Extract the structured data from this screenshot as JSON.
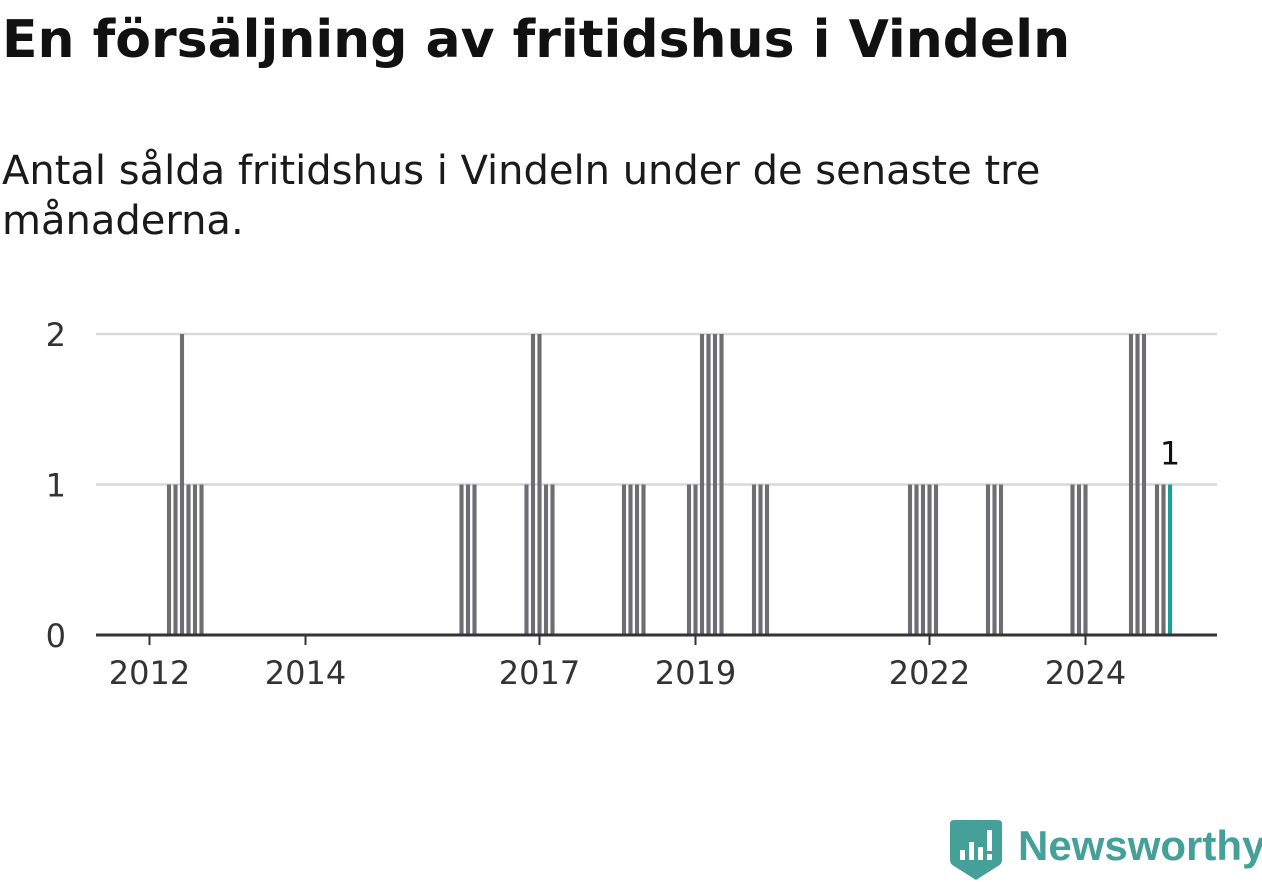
{
  "title": "En försäljning av fritidshus i Vindeln",
  "subtitle": "Antal sålda fritidshus i Vindeln under de senaste tre månaderna.",
  "brand": {
    "name": "Newsworthy",
    "color": "#46a09a"
  },
  "colors": {
    "bar": "#6d6d72",
    "highlight": "#16a397",
    "grid": "#d9d9d9",
    "axis": "#333333",
    "text": "#333333"
  },
  "chart_data": {
    "type": "bar",
    "title": "En försäljning av fritidshus i Vindeln",
    "subtitle": "Antal sålda fritidshus i Vindeln under de senaste tre månaderna.",
    "xlabel": "",
    "ylabel": "",
    "ylim": [
      0,
      2
    ],
    "yticks": [
      0,
      1,
      2
    ],
    "xticks": [
      "2012",
      "2014",
      "2017",
      "2019",
      "2022",
      "2024"
    ],
    "grid": true,
    "x_unit": "month",
    "x": [
      "2012-04",
      "2012-05",
      "2012-06",
      "2012-07",
      "2012-08",
      "2012-09",
      "2016-01",
      "2016-02",
      "2016-03",
      "2016-11",
      "2016-12",
      "2017-01",
      "2017-02",
      "2017-03",
      "2018-02",
      "2018-03",
      "2018-04",
      "2018-05",
      "2018-12",
      "2019-01",
      "2019-02",
      "2019-03",
      "2019-04",
      "2019-05",
      "2019-10",
      "2019-11",
      "2019-12",
      "2021-10",
      "2021-11",
      "2021-12",
      "2022-01",
      "2022-02",
      "2022-10",
      "2022-11",
      "2022-12",
      "2023-11",
      "2023-12",
      "2024-01",
      "2024-08",
      "2024-09",
      "2024-10",
      "2024-12",
      "2025-01",
      "2025-02"
    ],
    "values": [
      1,
      1,
      2,
      1,
      1,
      1,
      1,
      1,
      1,
      1,
      2,
      2,
      1,
      1,
      1,
      1,
      1,
      1,
      1,
      1,
      2,
      2,
      2,
      2,
      1,
      1,
      1,
      1,
      1,
      1,
      1,
      1,
      1,
      1,
      1,
      1,
      1,
      1,
      2,
      2,
      2,
      1,
      1,
      1
    ],
    "highlight": {
      "x": "2025-02",
      "value": 1,
      "label": "1"
    }
  }
}
